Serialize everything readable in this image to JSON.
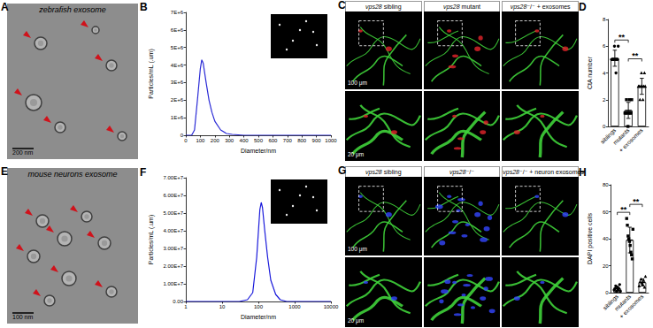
{
  "figure": {
    "images": [
      {
        "panel": "A",
        "title": "zebrafish exosome",
        "scale_bar": "200 nm"
      },
      {
        "panel": "C",
        "images": [
          {
            "label": "vps28 sibling",
            "scale_bar": "100 μm",
            "inset_scale_bar": "20 μm"
          },
          {
            "label": "vps28 mutant"
          },
          {
            "label": "vps28⁻/⁻ + exosomes"
          }
        ]
      },
      {
        "panel": "E",
        "title": "mouse neurons exosome",
        "scale_bar": "100 nm"
      },
      {
        "panel": "G",
        "images": [
          {
            "label": "vps28 sibling",
            "scale_bar": "100 μm",
            "inset_scale_bar": "20 μm"
          },
          {
            "label": "vps28⁻/⁻"
          },
          {
            "label": "vps28⁻/⁻ + neuron exosomes"
          }
        ]
      }
    ]
  },
  "chart_data": [
    {
      "panel": "B",
      "type": "line",
      "x": [
        0,
        40,
        60,
        80,
        100,
        110,
        120,
        140,
        160,
        180,
        200,
        240,
        280,
        320,
        400,
        500,
        1000
      ],
      "values": [
        0,
        0,
        300000,
        2000000,
        3800000,
        4300000,
        4100000,
        3000000,
        2000000,
        1300000,
        800000,
        300000,
        100000,
        50000,
        0,
        0,
        0
      ],
      "color": "#2b2bd6",
      "xlabel": "Diameter/nm",
      "ylabel": "Particles/mL (.um)",
      "xlim": [
        0,
        1000
      ],
      "xticks": [
        0,
        100,
        200,
        300,
        400,
        500,
        600,
        700,
        800,
        900,
        1000
      ],
      "ylim": [
        0,
        7000000
      ],
      "yticks": [
        0,
        {
          "value": 1000000,
          "label": "1E+6"
        },
        {
          "value": 2000000,
          "label": "2E+6"
        },
        {
          "value": 3000000,
          "label": "3E+6"
        },
        {
          "value": 4000000,
          "label": "4E+6"
        },
        {
          "value": 5000000,
          "label": "5E+6"
        },
        {
          "value": 6000000,
          "label": "6E+6"
        },
        {
          "value": 7000000,
          "label": "7E+6"
        }
      ]
    },
    {
      "panel": "D",
      "type": "bar",
      "categories": [
        "siblings",
        "mutants",
        "+ exosomes"
      ],
      "values": [
        5.1,
        1.2,
        3
      ],
      "errors": [
        0.6,
        0.6,
        0.6
      ],
      "color": "#ffffff",
      "points": [
        {
          "values": [
            5,
            5,
            5,
            5,
            6,
            5,
            4,
            5,
            5,
            6
          ],
          "marker": "circle"
        },
        {
          "values": [
            1,
            1,
            2,
            1,
            0,
            1,
            2,
            1,
            1,
            2
          ],
          "marker": "square"
        },
        {
          "values": [
            3,
            3,
            2,
            3,
            4,
            3,
            2,
            3,
            4,
            3
          ],
          "marker": "triangle"
        }
      ],
      "ylabel": "CtA number",
      "ylim": [
        0,
        8
      ],
      "yticks": [
        0,
        2,
        4,
        6,
        8
      ],
      "annotations": [
        {
          "text": "**",
          "between": [
            0,
            1
          ]
        },
        {
          "text": "**",
          "between": [
            1,
            2
          ]
        }
      ]
    },
    {
      "panel": "F",
      "type": "line",
      "log": "x",
      "x": [
        1,
        30,
        50,
        70,
        90,
        110,
        120,
        130,
        150,
        180,
        220,
        300,
        400,
        600,
        10000
      ],
      "values": [
        0,
        0,
        1000000,
        5000000,
        25000000,
        52000000,
        56000000,
        53000000,
        40000000,
        25000000,
        12000000,
        4000000,
        1000000,
        0,
        0
      ],
      "color": "#1a1adb",
      "xlabel": "Diameter/nm",
      "ylabel": "Particles/mL (.um)",
      "xlim": [
        1,
        10000
      ],
      "xticks": [
        1,
        10,
        100,
        1000,
        10000
      ],
      "ylim": [
        0,
        70000000
      ],
      "yticks": [
        {
          "value": 0,
          "label": "0.00"
        },
        {
          "value": 10000000,
          "label": "1.00E+7"
        },
        {
          "value": 20000000,
          "label": "2.00E+7"
        },
        {
          "value": 30000000,
          "label": "3.00E+7"
        },
        {
          "value": 40000000,
          "label": "4.00E+7"
        },
        {
          "value": 50000000,
          "label": "5.00E+7"
        },
        {
          "value": 60000000,
          "label": "6.00E+7"
        },
        {
          "value": 70000000,
          "label": "7.00E+7"
        }
      ]
    },
    {
      "panel": "H",
      "type": "bar",
      "categories": [
        "siblings",
        "mutants",
        "+ exosomes"
      ],
      "values": [
        3,
        39,
        7.6
      ],
      "errors": [
        1.6,
        9.5,
        2.6
      ],
      "color": "#ffffff",
      "points": [
        {
          "values": [
            2,
            3,
            5,
            1,
            4,
            2,
            3,
            6,
            1
          ],
          "marker": "circle"
        },
        {
          "values": [
            55,
            50,
            42,
            40,
            38,
            35,
            30,
            28,
            25,
            47
          ],
          "marker": "square"
        },
        {
          "values": [
            5,
            8,
            10,
            7,
            6,
            9,
            4,
            12
          ],
          "marker": "triangle"
        }
      ],
      "ylabel": "DAPI positive cells",
      "ylim": [
        0,
        80
      ],
      "yticks": [
        0,
        20,
        40,
        60,
        80
      ],
      "annotations": [
        {
          "text": "**",
          "between": [
            0,
            1
          ]
        },
        {
          "text": "**",
          "between": [
            1,
            2
          ]
        }
      ]
    }
  ]
}
